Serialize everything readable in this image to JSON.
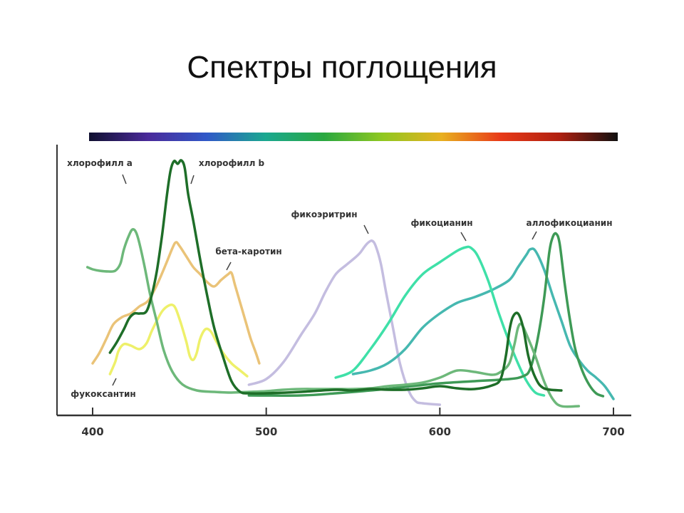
{
  "title": "Спектры поглощения",
  "chart_data": {
    "type": "line",
    "title": "",
    "xlabel": "",
    "ylabel": "",
    "xlim": [
      400,
      700
    ],
    "x_ticks": [
      "400",
      "500",
      "600",
      "700"
    ],
    "grid": false,
    "spectrum_bar_colors": [
      "#101030",
      "#4a2a9a",
      "#3058c8",
      "#1aa890",
      "#2aa840",
      "#90c820",
      "#e8b020",
      "#e83a18",
      "#b02010",
      "#101010"
    ],
    "series": [
      {
        "name": "хлорофилл a",
        "color": "#6db87a",
        "label_wavelength": 420,
        "points": [
          [
            397,
            375
          ],
          [
            400,
            378
          ],
          [
            404,
            380
          ],
          [
            409,
            381
          ],
          [
            413,
            380
          ],
          [
            416,
            370
          ],
          [
            418,
            350
          ],
          [
            421,
            330
          ],
          [
            423,
            322
          ],
          [
            425,
            326
          ],
          [
            427,
            342
          ],
          [
            430,
            375
          ],
          [
            433,
            412
          ],
          [
            437,
            452
          ],
          [
            441,
            492
          ],
          [
            446,
            522
          ],
          [
            452,
            540
          ],
          [
            460,
            548
          ],
          [
            470,
            550
          ],
          [
            480,
            551
          ],
          [
            490,
            550
          ],
          [
            500,
            549
          ],
          [
            510,
            547
          ],
          [
            520,
            546
          ],
          [
            530,
            546
          ],
          [
            540,
            546
          ],
          [
            550,
            546
          ],
          [
            560,
            545
          ],
          [
            570,
            542
          ],
          [
            580,
            540
          ],
          [
            590,
            537
          ],
          [
            600,
            530
          ],
          [
            610,
            520
          ],
          [
            620,
            522
          ],
          [
            630,
            526
          ],
          [
            635,
            522
          ],
          [
            640,
            510
          ],
          [
            643,
            483
          ],
          [
            645,
            460
          ],
          [
            647,
            455
          ],
          [
            650,
            470
          ],
          [
            655,
            500
          ],
          [
            660,
            535
          ],
          [
            665,
            560
          ],
          [
            670,
            570
          ],
          [
            680,
            570
          ]
        ]
      },
      {
        "name": "хлорофилл b",
        "color": "#1e6e28",
        "label_wavelength": 455,
        "points": [
          [
            410,
            495
          ],
          [
            414,
            480
          ],
          [
            418,
            462
          ],
          [
            421,
            447
          ],
          [
            424,
            440
          ],
          [
            427,
            440
          ],
          [
            431,
            437
          ],
          [
            434,
            415
          ],
          [
            437,
            380
          ],
          [
            440,
            330
          ],
          [
            443,
            270
          ],
          [
            445,
            238
          ],
          [
            447,
            226
          ],
          [
            449,
            230
          ],
          [
            451,
            225
          ],
          [
            453,
            235
          ],
          [
            455,
            272
          ],
          [
            458,
            310
          ],
          [
            462,
            365
          ],
          [
            466,
            415
          ],
          [
            470,
            460
          ],
          [
            475,
            500
          ],
          [
            480,
            535
          ],
          [
            485,
            550
          ],
          [
            490,
            552
          ],
          [
            500,
            552
          ],
          [
            520,
            550
          ],
          [
            540,
            547
          ],
          [
            550,
            548
          ],
          [
            560,
            546
          ],
          [
            570,
            547
          ],
          [
            580,
            547
          ],
          [
            590,
            545
          ],
          [
            600,
            542
          ],
          [
            610,
            545
          ],
          [
            620,
            546
          ],
          [
            630,
            541
          ],
          [
            635,
            532
          ],
          [
            638,
            500
          ],
          [
            640,
            465
          ],
          [
            642,
            445
          ],
          [
            645,
            440
          ],
          [
            648,
            460
          ],
          [
            651,
            500
          ],
          [
            655,
            530
          ],
          [
            660,
            545
          ],
          [
            670,
            548
          ]
        ]
      },
      {
        "name": "бета-каротин",
        "color": "#eac378",
        "label_wavelength": 475,
        "points": [
          [
            400,
            510
          ],
          [
            404,
            495
          ],
          [
            408,
            475
          ],
          [
            412,
            455
          ],
          [
            417,
            445
          ],
          [
            422,
            440
          ],
          [
            427,
            430
          ],
          [
            432,
            422
          ],
          [
            437,
            400
          ],
          [
            442,
            372
          ],
          [
            446,
            348
          ],
          [
            448,
            340
          ],
          [
            450,
            345
          ],
          [
            454,
            360
          ],
          [
            458,
            375
          ],
          [
            462,
            385
          ],
          [
            466,
            396
          ],
          [
            470,
            402
          ],
          [
            474,
            393
          ],
          [
            478,
            385
          ],
          [
            480,
            383
          ],
          [
            482,
            400
          ],
          [
            485,
            425
          ],
          [
            488,
            450
          ],
          [
            491,
            475
          ],
          [
            494,
            495
          ],
          [
            496,
            510
          ]
        ]
      },
      {
        "name": "фукоксантин",
        "color": "#eef06a",
        "label_wavelength": 412,
        "points": [
          [
            410,
            525
          ],
          [
            413,
            508
          ],
          [
            415,
            492
          ],
          [
            418,
            483
          ],
          [
            422,
            485
          ],
          [
            427,
            490
          ],
          [
            431,
            482
          ],
          [
            434,
            465
          ],
          [
            437,
            450
          ],
          [
            440,
            437
          ],
          [
            443,
            430
          ],
          [
            446,
            428
          ],
          [
            448,
            434
          ],
          [
            451,
            455
          ],
          [
            454,
            480
          ],
          [
            456,
            500
          ],
          [
            458,
            505
          ],
          [
            460,
            495
          ],
          [
            462,
            475
          ],
          [
            465,
            462
          ],
          [
            468,
            465
          ],
          [
            471,
            478
          ],
          [
            475,
            495
          ],
          [
            480,
            510
          ],
          [
            485,
            520
          ],
          [
            489,
            528
          ]
        ]
      },
      {
        "name": "фикоэритрин",
        "color": "#c4bde0",
        "label_wavelength": 560,
        "points": [
          [
            490,
            540
          ],
          [
            500,
            532
          ],
          [
            510,
            508
          ],
          [
            520,
            470
          ],
          [
            528,
            440
          ],
          [
            534,
            410
          ],
          [
            540,
            385
          ],
          [
            546,
            372
          ],
          [
            551,
            362
          ],
          [
            554,
            355
          ],
          [
            557,
            345
          ],
          [
            559,
            340
          ],
          [
            561,
            338
          ],
          [
            563,
            345
          ],
          [
            566,
            370
          ],
          [
            569,
            410
          ],
          [
            573,
            460
          ],
          [
            577,
            510
          ],
          [
            582,
            548
          ],
          [
            586,
            563
          ],
          [
            590,
            566
          ],
          [
            600,
            568
          ]
        ]
      },
      {
        "name": "фикоцианин",
        "color": "#3fe0a8",
        "label_wavelength": 613,
        "points": [
          [
            540,
            530
          ],
          [
            550,
            520
          ],
          [
            560,
            490
          ],
          [
            570,
            455
          ],
          [
            580,
            415
          ],
          [
            590,
            385
          ],
          [
            600,
            368
          ],
          [
            610,
            352
          ],
          [
            615,
            347
          ],
          [
            618,
            348
          ],
          [
            622,
            360
          ],
          [
            628,
            395
          ],
          [
            634,
            440
          ],
          [
            640,
            480
          ],
          [
            645,
            510
          ],
          [
            650,
            535
          ],
          [
            655,
            551
          ],
          [
            660,
            555
          ]
        ]
      },
      {
        "name": "аллофикоцианин",
        "color": "#46b8b0",
        "label_wavelength": 651,
        "points": [
          [
            550,
            525
          ],
          [
            560,
            520
          ],
          [
            570,
            510
          ],
          [
            580,
            490
          ],
          [
            590,
            460
          ],
          [
            600,
            440
          ],
          [
            610,
            425
          ],
          [
            620,
            417
          ],
          [
            630,
            407
          ],
          [
            640,
            393
          ],
          [
            645,
            375
          ],
          [
            650,
            357
          ],
          [
            652,
            350
          ],
          [
            655,
            352
          ],
          [
            660,
            378
          ],
          [
            665,
            415
          ],
          [
            670,
            450
          ],
          [
            675,
            485
          ],
          [
            680,
            505
          ],
          [
            685,
            520
          ],
          [
            690,
            530
          ],
          [
            695,
            542
          ],
          [
            700,
            560
          ]
        ]
      },
      {
        "name": "",
        "color": "#3e9a56",
        "label_wavelength": null,
        "points": [
          [
            490,
            555
          ],
          [
            520,
            555
          ],
          [
            540,
            552
          ],
          [
            560,
            548
          ],
          [
            580,
            543
          ],
          [
            600,
            538
          ],
          [
            620,
            535
          ],
          [
            640,
            532
          ],
          [
            648,
            528
          ],
          [
            652,
            518
          ],
          [
            656,
            480
          ],
          [
            660,
            420
          ],
          [
            663,
            355
          ],
          [
            665,
            333
          ],
          [
            667,
            328
          ],
          [
            669,
            342
          ],
          [
            672,
            400
          ],
          [
            675,
            450
          ],
          [
            678,
            490
          ],
          [
            682,
            520
          ],
          [
            686,
            540
          ],
          [
            690,
            552
          ],
          [
            694,
            556
          ]
        ]
      }
    ]
  }
}
